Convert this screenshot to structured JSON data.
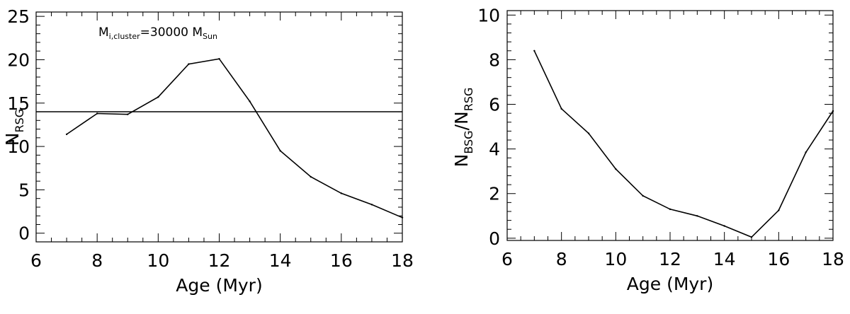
{
  "chart_data": [
    {
      "type": "line",
      "xlabel": "Age (Myr)",
      "ylabel": {
        "main": "N",
        "sub": "RSG"
      },
      "annotation": {
        "m": "M",
        "m_sub": "i,cluster",
        "eq": "=30000",
        "m2": "M",
        "m2_sub": "Sun"
      },
      "xlim": [
        6,
        18
      ],
      "ylim": [
        -1,
        25.5
      ],
      "xticks": [
        6,
        8,
        10,
        12,
        14,
        16,
        18
      ],
      "yticks": [
        0,
        5,
        10,
        15,
        20,
        25
      ],
      "ytick_labels": [
        "0",
        "5",
        "10",
        "15",
        "20",
        "25"
      ],
      "x": [
        7,
        8,
        9,
        10,
        11,
        12,
        13,
        14,
        15,
        16,
        17,
        18
      ],
      "y": [
        11.4,
        13.8,
        13.7,
        15.7,
        19.5,
        20.1,
        15.2,
        9.5,
        6.5,
        4.6,
        3.3,
        1.8
      ],
      "hline": 14.0,
      "grid": false
    },
    {
      "type": "line",
      "xlabel": "Age (Myr)",
      "ylabel": {
        "a": "N",
        "a_sub": "BSG",
        "slash": "/",
        "b": "N",
        "b_sub": "RSG"
      },
      "xlim": [
        6,
        18
      ],
      "ylim": [
        -0.1,
        10.2
      ],
      "xticks": [
        6,
        8,
        10,
        12,
        14,
        16,
        18
      ],
      "yticks": [
        0,
        2,
        4,
        6,
        8,
        10
      ],
      "ytick_labels": [
        "0",
        "2",
        "4",
        "6",
        "8",
        "10"
      ],
      "x": [
        7,
        8,
        9,
        10,
        11,
        12,
        13,
        14,
        15,
        16,
        17,
        18
      ],
      "y": [
        8.4,
        5.8,
        4.7,
        3.1,
        1.9,
        1.3,
        1.0,
        0.55,
        0.05,
        1.25,
        3.85,
        5.7
      ],
      "grid": false
    }
  ]
}
